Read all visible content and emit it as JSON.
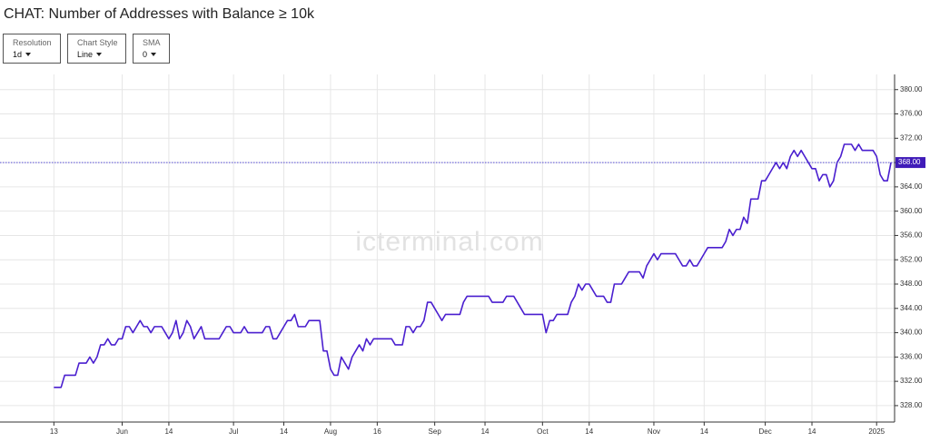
{
  "title": "CHAT: Number of Addresses with Balance ≥ 10k",
  "controls": [
    {
      "label": "Resolution",
      "value": "1d"
    },
    {
      "label": "Chart Style",
      "value": "Line"
    },
    {
      "label": "SMA",
      "value": "0"
    }
  ],
  "chart_data": {
    "type": "line",
    "color": "#4a1fcf",
    "grid": true,
    "watermark": "icterminal.com",
    "values": [
      331,
      331,
      331,
      333,
      333,
      333,
      333,
      335,
      335,
      335,
      336,
      335,
      336,
      338,
      338,
      339,
      338,
      338,
      339,
      339,
      341,
      341,
      340,
      341,
      342,
      341,
      341,
      340,
      341,
      341,
      341,
      340,
      339,
      340,
      342,
      339,
      340,
      342,
      341,
      339,
      340,
      341,
      339,
      339,
      339,
      339,
      339,
      340,
      341,
      341,
      340,
      340,
      340,
      341,
      340,
      340,
      340,
      340,
      340,
      341,
      341,
      339,
      339,
      340,
      341,
      342,
      342,
      343,
      341,
      341,
      341,
      342,
      342,
      342,
      342,
      337,
      337,
      334,
      333,
      333,
      336,
      335,
      334,
      336,
      337,
      338,
      337,
      339,
      338,
      339,
      339,
      339,
      339,
      339,
      339,
      338,
      338,
      338,
      341,
      341,
      340,
      341,
      341,
      342,
      345,
      345,
      344,
      343,
      342,
      343,
      343,
      343,
      343,
      343,
      345,
      346,
      346,
      346,
      346,
      346,
      346,
      346,
      345,
      345,
      345,
      345,
      346,
      346,
      346,
      345,
      344,
      343,
      343,
      343,
      343,
      343,
      343,
      340,
      342,
      342,
      343,
      343,
      343,
      343,
      345,
      346,
      348,
      347,
      348,
      348,
      347,
      346,
      346,
      346,
      345,
      345,
      348,
      348,
      348,
      349,
      350,
      350,
      350,
      350,
      349,
      351,
      352,
      353,
      352,
      353,
      353,
      353,
      353,
      353,
      352,
      351,
      351,
      352,
      351,
      351,
      352,
      353,
      354,
      354,
      354,
      354,
      354,
      355,
      357,
      356,
      357,
      357,
      359,
      358,
      362,
      362,
      362,
      365,
      365,
      366,
      367,
      368,
      367,
      368,
      367,
      369,
      370,
      369,
      370,
      369,
      368,
      367,
      367,
      365,
      366,
      366,
      364,
      365,
      368,
      369,
      371,
      371,
      371,
      370,
      371,
      370,
      370,
      370,
      370,
      369,
      366,
      365,
      365,
      368
    ],
    "xlim": [
      -15,
      234
    ],
    "xticks": [
      {
        "value": 0,
        "label": "13"
      },
      {
        "value": 19,
        "label": "Jun"
      },
      {
        "value": 32,
        "label": "14"
      },
      {
        "value": 50,
        "label": "Jul"
      },
      {
        "value": 64,
        "label": "14"
      },
      {
        "value": 77,
        "label": "Aug"
      },
      {
        "value": 90,
        "label": "16"
      },
      {
        "value": 106,
        "label": "Sep"
      },
      {
        "value": 120,
        "label": "14"
      },
      {
        "value": 136,
        "label": "Oct"
      },
      {
        "value": 149,
        "label": "14"
      },
      {
        "value": 167,
        "label": "Nov"
      },
      {
        "value": 181,
        "label": "14"
      },
      {
        "value": 198,
        "label": "Dec"
      },
      {
        "value": 211,
        "label": "14"
      },
      {
        "value": 229,
        "label": "2025"
      }
    ],
    "ylim": [
      325.3,
      382.5
    ],
    "yticks": [
      {
        "value": 328,
        "label": "328.00"
      },
      {
        "value": 332,
        "label": "332.00"
      },
      {
        "value": 336,
        "label": "336.00"
      },
      {
        "value": 340,
        "label": "340.00"
      },
      {
        "value": 344,
        "label": "344.00"
      },
      {
        "value": 348,
        "label": "348.00"
      },
      {
        "value": 352,
        "label": "352.00"
      },
      {
        "value": 356,
        "label": "356.00"
      },
      {
        "value": 360,
        "label": "360.00"
      },
      {
        "value": 364,
        "label": "364.00"
      },
      {
        "value": 368,
        "label": "368.00"
      },
      {
        "value": 372,
        "label": "372.00"
      },
      {
        "value": 376,
        "label": "376.00"
      },
      {
        "value": 380,
        "label": "380.00"
      }
    ],
    "marker_line": {
      "value": 368,
      "label": "368.00"
    }
  }
}
